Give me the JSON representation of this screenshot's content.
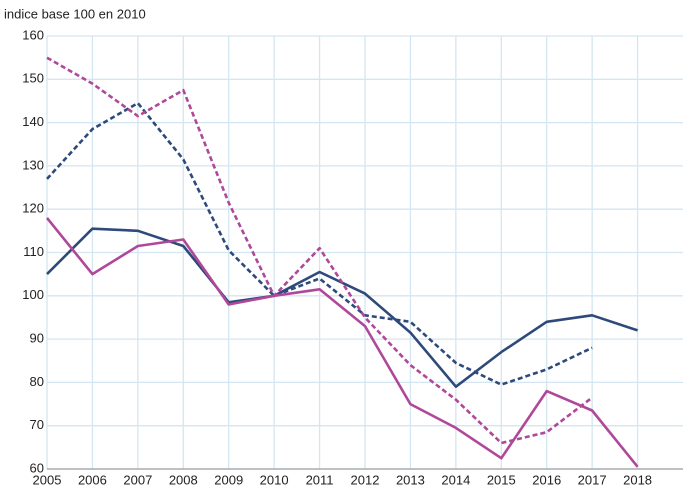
{
  "chart_data": {
    "type": "line",
    "title": "indice base 100 en 2010",
    "x": [
      2005,
      2006,
      2007,
      2008,
      2009,
      2010,
      2011,
      2012,
      2013,
      2014,
      2015,
      2016,
      2017,
      2018
    ],
    "series": [
      {
        "color": "#2e4a7a",
        "dashed": false,
        "values": [
          105,
          115.5,
          115,
          111.5,
          98.5,
          100,
          105.5,
          100.5,
          91.5,
          79,
          87,
          94,
          95.5,
          92
        ]
      },
      {
        "color": "#2e4a7a",
        "dashed": true,
        "values": [
          127,
          138.5,
          144.5,
          131.5,
          110.5,
          100,
          104,
          95.5,
          94,
          84.5,
          79.5,
          83,
          88,
          null
        ]
      },
      {
        "color": "#b0489a",
        "dashed": false,
        "values": [
          118,
          105,
          111.5,
          113,
          98,
          100,
          101.5,
          93,
          75,
          69.5,
          62.5,
          78,
          73.5,
          60.5
        ]
      },
      {
        "color": "#b0489a",
        "dashed": true,
        "values": [
          155,
          149,
          141.5,
          147.5,
          121.5,
          100,
          111,
          95,
          84,
          76,
          66,
          68.5,
          76.5,
          null
        ]
      }
    ],
    "xlim": [
      2005,
      2019
    ],
    "xticks": [
      2005,
      2006,
      2007,
      2008,
      2009,
      2010,
      2011,
      2012,
      2013,
      2014,
      2015,
      2016,
      2017,
      2018
    ],
    "ylim": [
      60,
      160
    ],
    "yticks": [
      60,
      70,
      80,
      90,
      100,
      110,
      120,
      130,
      140,
      150,
      160
    ],
    "grid": true
  }
}
